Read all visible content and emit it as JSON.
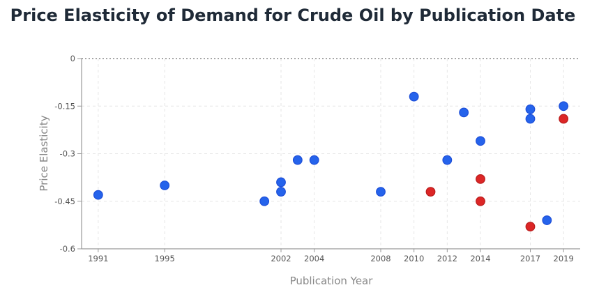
{
  "chart_data": {
    "type": "scatter",
    "title": "Price Elasticity of Demand for Crude Oil by Publication Date",
    "xlabel": "Publication Year",
    "ylabel": "Price Elasticity",
    "xlim": [
      1990,
      2020
    ],
    "ylim": [
      -0.6,
      0
    ],
    "xticks": [
      1991,
      1995,
      2002,
      2004,
      2008,
      2010,
      2012,
      2014,
      2017,
      2019
    ],
    "yticks": [
      0,
      -0.15,
      -0.3,
      -0.45,
      -0.6
    ],
    "ytick_labels": [
      "0",
      "-0.15",
      "-0.3",
      "-0.45",
      "-0.6"
    ],
    "grid": true,
    "reference_line": 0,
    "colors": {
      "blue": "#2563eb",
      "red": "#dc2626"
    },
    "series": [
      {
        "color": "#2563eb",
        "points": [
          [
            1991,
            -0.43
          ],
          [
            1995,
            -0.4
          ],
          [
            2001,
            -0.45
          ],
          [
            2002,
            -0.39
          ],
          [
            2002,
            -0.42
          ],
          [
            2003,
            -0.32
          ],
          [
            2004,
            -0.32
          ],
          [
            2008,
            -0.42
          ],
          [
            2010,
            -0.12
          ],
          [
            2012,
            -0.32
          ],
          [
            2013,
            -0.17
          ],
          [
            2014,
            -0.26
          ],
          [
            2017,
            -0.16
          ],
          [
            2017,
            -0.19
          ],
          [
            2018,
            -0.51
          ],
          [
            2019,
            -0.15
          ]
        ]
      },
      {
        "color": "#dc2626",
        "points": [
          [
            2011,
            -0.42
          ],
          [
            2014,
            -0.38
          ],
          [
            2014,
            -0.45
          ],
          [
            2017,
            -0.53
          ],
          [
            2019,
            -0.19
          ]
        ]
      }
    ]
  }
}
